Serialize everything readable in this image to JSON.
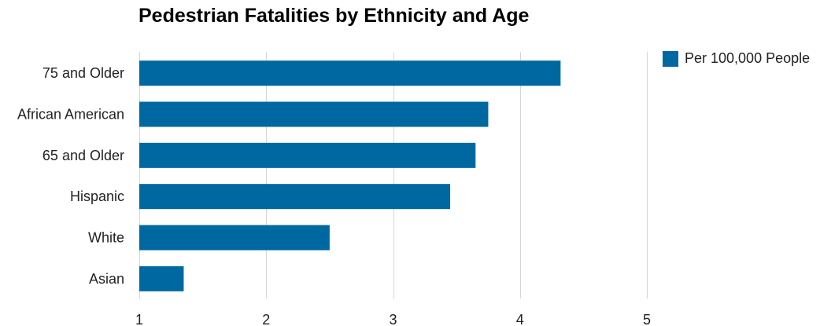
{
  "chart_data": {
    "type": "bar",
    "orientation": "horizontal",
    "title": "Pedestrian Fatalities by Ethnicity and Age",
    "categories": [
      "75 and Older",
      "African American",
      "65 and Older",
      "Hispanic",
      "White",
      "Asian"
    ],
    "series": [
      {
        "name": "Per 100,000 People",
        "values": [
          4.32,
          3.75,
          3.65,
          3.45,
          2.5,
          1.35
        ]
      }
    ],
    "xlim": [
      1,
      5
    ],
    "xticks": [
      1,
      2,
      3,
      4,
      5
    ],
    "grid": true,
    "legend_position": "top-right",
    "bar_color": "#0068a0"
  }
}
